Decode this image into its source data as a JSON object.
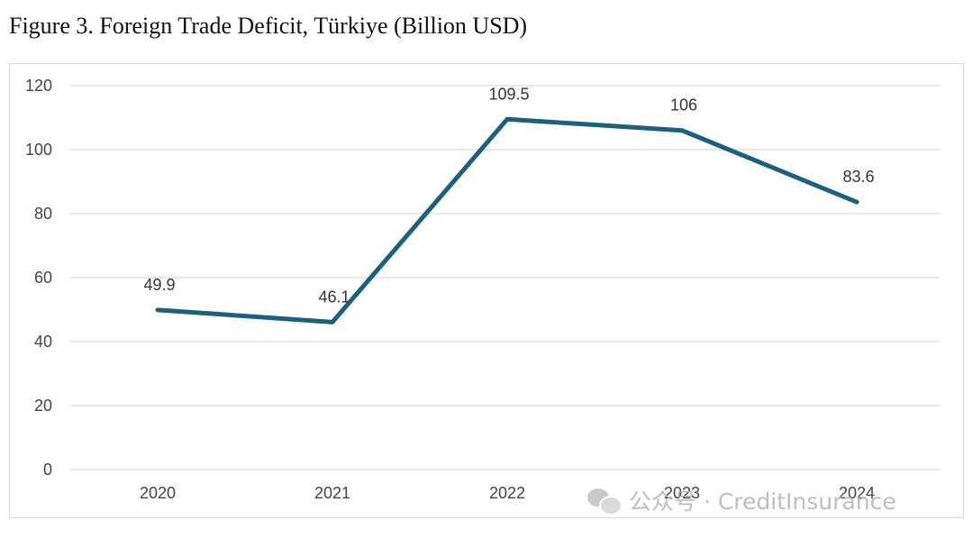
{
  "title": "Figure 3. Foreign Trade Deficit, Türkiye (Billion USD)",
  "watermark": {
    "icon": "wechat-icon",
    "text": "公众号 · CreditInsurance"
  },
  "colors": {
    "line": "#1d5f7e",
    "grid": "#d9d9d9"
  },
  "chart_data": {
    "type": "line",
    "title": "Figure 3. Foreign Trade Deficit, Türkiye (Billion USD)",
    "xlabel": "",
    "ylabel": "",
    "categories": [
      "2020",
      "2021",
      "2022",
      "2023",
      "2024"
    ],
    "series": [
      {
        "values": [
          49.9,
          46.1,
          109.5,
          106,
          83.6
        ],
        "labels": [
          "49.9",
          "46.1",
          "109.5",
          "106",
          "83.6"
        ]
      }
    ],
    "ylim": [
      0,
      120
    ],
    "yticks": [
      0,
      20,
      40,
      60,
      80,
      100,
      120
    ],
    "grid": true,
    "legend": "none"
  }
}
